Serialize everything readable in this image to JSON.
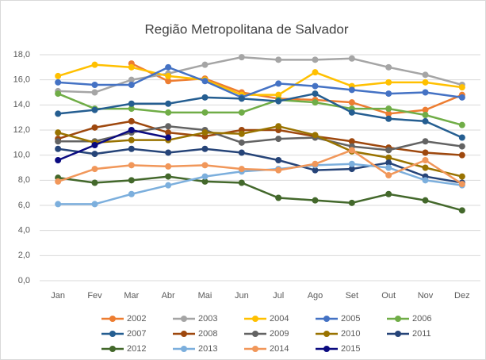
{
  "chart_data": {
    "type": "line",
    "title": "Região Metropolitana de Salvador",
    "categories": [
      "Jan",
      "Fev",
      "Mar",
      "Abr",
      "Mai",
      "Jun",
      "Jul",
      "Ago",
      "Set",
      "Out",
      "Nov",
      "Dez"
    ],
    "ylim": [
      0,
      18
    ],
    "yticks": [
      {
        "value": 0,
        "label": "0,0"
      },
      {
        "value": 2,
        "label": "2,0"
      },
      {
        "value": 4,
        "label": "4,0"
      },
      {
        "value": 6,
        "label": "6,0"
      },
      {
        "value": 8,
        "label": "8,0"
      },
      {
        "value": 10,
        "label": "10,0"
      },
      {
        "value": 12,
        "label": "12,0"
      },
      {
        "value": 14,
        "label": "14,0"
      },
      {
        "value": 16,
        "label": "16,0"
      },
      {
        "value": 18,
        "label": "18,0"
      }
    ],
    "grid": true,
    "series": [
      {
        "name": "2002",
        "color": "#ED7D31",
        "values": [
          null,
          null,
          17.3,
          15.9,
          16.1,
          15.0,
          14.5,
          14.4,
          14.2,
          13.3,
          13.6,
          14.8
        ]
      },
      {
        "name": "2003",
        "color": "#A5A5A5",
        "values": [
          15.1,
          15.0,
          16.0,
          16.5,
          17.2,
          17.8,
          17.6,
          17.6,
          17.7,
          17.0,
          16.4,
          15.6
        ]
      },
      {
        "name": "2004",
        "color": "#FFC000",
        "values": [
          16.3,
          17.2,
          17.0,
          16.3,
          16.0,
          14.8,
          14.8,
          16.6,
          15.5,
          15.8,
          15.8,
          15.4
        ]
      },
      {
        "name": "2005",
        "color": "#4472C4",
        "values": [
          15.8,
          15.6,
          15.6,
          17.0,
          15.9,
          14.6,
          15.7,
          15.5,
          15.2,
          14.9,
          15.0,
          14.6
        ]
      },
      {
        "name": "2006",
        "color": "#70AD47",
        "values": [
          14.9,
          13.7,
          13.7,
          13.4,
          13.4,
          13.4,
          14.4,
          14.2,
          13.7,
          13.7,
          13.2,
          12.4
        ]
      },
      {
        "name": "2007",
        "color": "#255E91",
        "values": [
          13.3,
          13.6,
          14.1,
          14.1,
          14.6,
          14.5,
          14.3,
          14.9,
          13.4,
          12.9,
          12.7,
          11.4
        ]
      },
      {
        "name": "2008",
        "color": "#9E480E",
        "values": [
          11.3,
          12.2,
          12.7,
          11.8,
          11.5,
          12.0,
          12.0,
          11.5,
          11.1,
          10.6,
          10.2,
          10.0
        ]
      },
      {
        "name": "2009",
        "color": "#636363",
        "values": [
          11.1,
          11.1,
          11.8,
          12.3,
          12.0,
          11.0,
          11.3,
          11.4,
          10.7,
          10.4,
          11.1,
          10.7
        ]
      },
      {
        "name": "2010",
        "color": "#997300",
        "values": [
          11.8,
          11.0,
          11.2,
          11.2,
          11.8,
          11.7,
          12.3,
          11.6,
          10.3,
          9.8,
          9.0,
          8.3
        ]
      },
      {
        "name": "2011",
        "color": "#264478",
        "values": [
          10.5,
          10.1,
          10.5,
          10.2,
          10.5,
          10.2,
          9.6,
          8.8,
          8.9,
          9.4,
          8.3,
          7.8
        ]
      },
      {
        "name": "2012",
        "color": "#43682B",
        "values": [
          8.2,
          7.8,
          8.0,
          8.3,
          7.9,
          7.8,
          6.6,
          6.4,
          6.2,
          6.9,
          6.4,
          5.6
        ]
      },
      {
        "name": "2013",
        "color": "#7CAFDD",
        "values": [
          6.1,
          6.1,
          6.9,
          7.6,
          8.3,
          8.7,
          8.9,
          9.2,
          9.3,
          9.0,
          8.0,
          7.6
        ]
      },
      {
        "name": "2014",
        "color": "#F1975A",
        "values": [
          7.9,
          8.9,
          9.2,
          9.1,
          9.2,
          8.9,
          8.8,
          9.3,
          10.4,
          8.4,
          9.6,
          7.7
        ]
      },
      {
        "name": "2015",
        "color": "#0A0A80",
        "values": [
          9.6,
          10.8,
          12.0,
          11.4,
          null,
          null,
          null,
          null,
          null,
          null,
          null,
          null
        ]
      }
    ]
  }
}
